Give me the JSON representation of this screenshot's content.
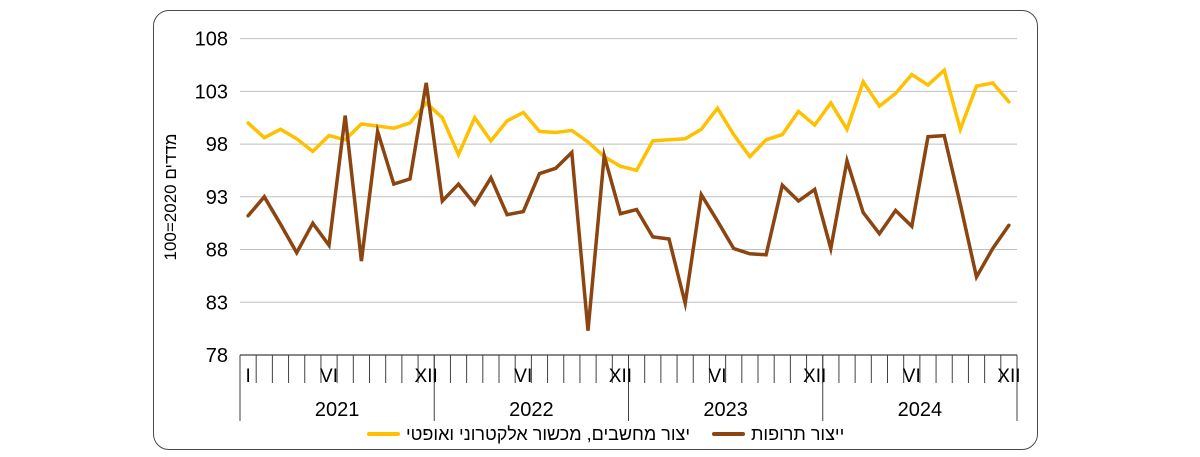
{
  "style": {
    "gridline_color": "#BFBFBF",
    "axis_color": "#404040",
    "text_color": "#000000",
    "series_yellow": "#FFC000",
    "series_brown": "#8C4510"
  },
  "legend": [
    {
      "label": "יצור מחשבים, מכשור אלקטרוני ואופטי",
      "color": "#FFC000"
    },
    {
      "label": "ייצור תרופות",
      "color": "#8C4510"
    }
  ],
  "chart_data": {
    "type": "line",
    "title": "",
    "ylabel": "מדדים 2020=100",
    "ylim": [
      78,
      108
    ],
    "yticks": [
      78,
      83,
      88,
      93,
      98,
      103,
      108
    ],
    "grid": "horizontal",
    "legend_position": "bottom",
    "n_points": 48,
    "years": [
      "2021",
      "2022",
      "2023",
      "2024"
    ],
    "x_unit": "months I–XII per year",
    "x_tick_labels": [
      {
        "index": 0,
        "label": "I"
      },
      {
        "index": 5,
        "label": "VI"
      },
      {
        "index": 11,
        "label": "XII"
      },
      {
        "index": 17,
        "label": "VI"
      },
      {
        "index": 23,
        "label": "XII"
      },
      {
        "index": 29,
        "label": "VI"
      },
      {
        "index": 35,
        "label": "XII"
      },
      {
        "index": 41,
        "label": "VI"
      },
      {
        "index": 47,
        "label": "XII"
      }
    ],
    "series": [
      {
        "name": "יצור מחשבים, מכשור אלקטרוני ואופטי",
        "color": "#FFC000",
        "values": [
          100.0,
          98.6,
          99.4,
          98.5,
          97.3,
          98.8,
          98.4,
          99.9,
          99.7,
          99.5,
          100.0,
          101.9,
          100.5,
          97.0,
          100.5,
          98.3,
          100.2,
          101.0,
          99.2,
          99.1,
          99.3,
          98.2,
          96.8,
          95.9,
          95.5,
          98.3,
          98.4,
          98.5,
          99.4,
          101.4,
          98.9,
          96.8,
          98.4,
          98.9,
          101.1,
          99.8,
          101.9,
          99.4,
          103.9,
          101.6,
          102.8,
          104.6,
          103.6,
          105.0,
          99.4,
          103.5,
          103.8,
          102.0
        ]
      },
      {
        "name": "ייצור תרופות",
        "color": "#8C4510",
        "values": [
          91.2,
          93.0,
          90.4,
          87.7,
          90.5,
          88.4,
          100.7,
          86.9,
          99.2,
          94.2,
          94.7,
          103.8,
          92.6,
          94.2,
          92.3,
          94.8,
          91.3,
          91.6,
          95.2,
          95.7,
          97.2,
          80.3,
          96.9,
          91.4,
          91.8,
          89.2,
          89.0,
          82.9,
          93.2,
          90.7,
          88.1,
          87.6,
          87.5,
          94.1,
          92.6,
          93.7,
          88.1,
          96.4,
          91.5,
          89.5,
          91.7,
          90.2,
          98.7,
          98.8,
          92.3,
          85.4,
          88.1,
          90.3
        ]
      }
    ]
  }
}
